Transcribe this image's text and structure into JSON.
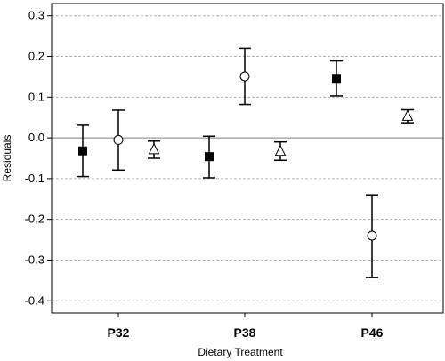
{
  "chart_data": {
    "type": "scatter",
    "subtype": "point-with-error-bars",
    "xlabel": "Dietary Treatment",
    "ylabel": "Residuals",
    "categories": [
      "P32",
      "P38",
      "P46"
    ],
    "ylim": [
      -0.43,
      0.33
    ],
    "yticks": [
      0.3,
      0.2,
      0.1,
      0.0,
      -0.1,
      -0.2,
      -0.3,
      -0.4
    ],
    "ytick_labels": [
      "0.3",
      "0.2",
      "0.1",
      "0.0",
      "-0.1",
      "-0.2",
      "-0.3",
      "-0.4"
    ],
    "grid": "horizontal dashed",
    "reference_line": 0.0,
    "series": [
      {
        "marker": "filled-square",
        "points": [
          {
            "category": "P32",
            "y": -0.032,
            "lower": -0.095,
            "upper": 0.031
          },
          {
            "category": "P38",
            "y": -0.046,
            "lower": -0.098,
            "upper": 0.004
          },
          {
            "category": "P46",
            "y": 0.146,
            "lower": 0.103,
            "upper": 0.189
          }
        ]
      },
      {
        "marker": "open-circle",
        "points": [
          {
            "category": "P32",
            "y": -0.005,
            "lower": -0.079,
            "upper": 0.068
          },
          {
            "category": "P38",
            "y": 0.151,
            "lower": 0.082,
            "upper": 0.22
          },
          {
            "category": "P46",
            "y": -0.24,
            "lower": -0.343,
            "upper": -0.14
          }
        ]
      },
      {
        "marker": "open-triangle",
        "points": [
          {
            "category": "P32",
            "y": -0.028,
            "lower": -0.05,
            "upper": -0.008
          },
          {
            "category": "P38",
            "y": -0.032,
            "lower": -0.055,
            "upper": -0.01
          },
          {
            "category": "P46",
            "y": 0.054,
            "lower": 0.037,
            "upper": 0.069
          }
        ]
      }
    ]
  }
}
